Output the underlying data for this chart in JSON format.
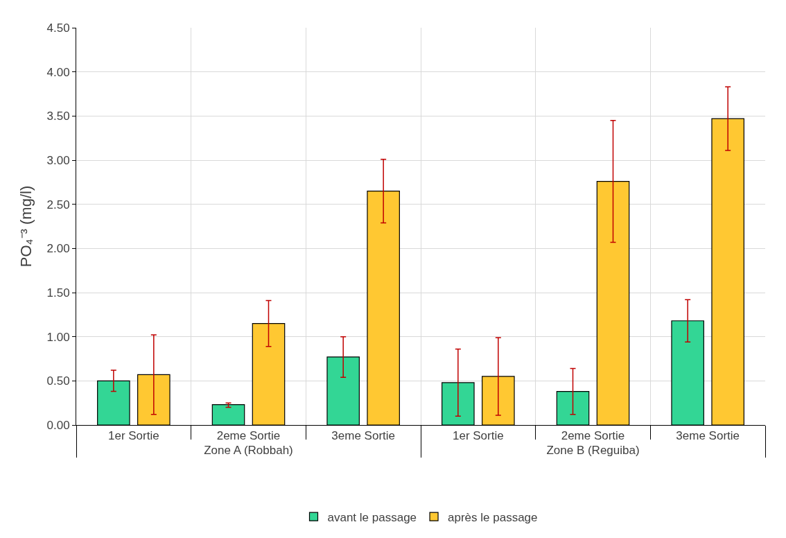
{
  "chart_data": {
    "type": "bar",
    "ylabel": "PO₄⁻³ (mg/l)",
    "categories": [
      "1er Sortie",
      "2eme Sortie",
      "3eme Sortie",
      "1er Sortie",
      "2eme Sortie",
      "3eme Sortie"
    ],
    "annotations": [
      "Zone A (Robbah)",
      "Zone B (Reguiba)"
    ],
    "series": [
      {
        "name": "avant le passage",
        "color": "#33d695",
        "values": [
          0.5,
          0.23,
          0.77,
          0.48,
          0.38,
          1.18
        ],
        "errors": [
          [
            0.38,
            0.62
          ],
          [
            0.2,
            0.25
          ],
          [
            0.54,
            1.0
          ],
          [
            0.1,
            0.86
          ],
          [
            0.12,
            0.64
          ],
          [
            0.94,
            1.42
          ]
        ]
      },
      {
        "name": "après le passage",
        "color": "#ffc832",
        "values": [
          0.57,
          1.15,
          2.65,
          0.55,
          2.76,
          3.47
        ],
        "errors": [
          [
            0.12,
            1.02
          ],
          [
            0.89,
            1.41
          ],
          [
            2.29,
            3.01
          ],
          [
            0.11,
            0.99
          ],
          [
            2.07,
            3.45
          ],
          [
            3.11,
            3.83
          ]
        ]
      }
    ],
    "ylim": [
      0,
      4.5
    ],
    "yticks": [
      {
        "value": 0,
        "label": "0.00"
      },
      {
        "value": 0.5,
        "label": "0.50"
      },
      {
        "value": 1,
        "label": "1.00"
      },
      {
        "value": 1.5,
        "label": "1.50"
      },
      {
        "value": 2,
        "label": "2.00"
      },
      {
        "value": 2.5,
        "label": "2.50"
      },
      {
        "value": 3,
        "label": "3.00"
      },
      {
        "value": 3.5,
        "label": "3.50"
      },
      {
        "value": 4,
        "label": "4.00"
      },
      {
        "value": 4.5,
        "label": "4.50"
      }
    ],
    "grid": true,
    "legend": "bottom"
  }
}
